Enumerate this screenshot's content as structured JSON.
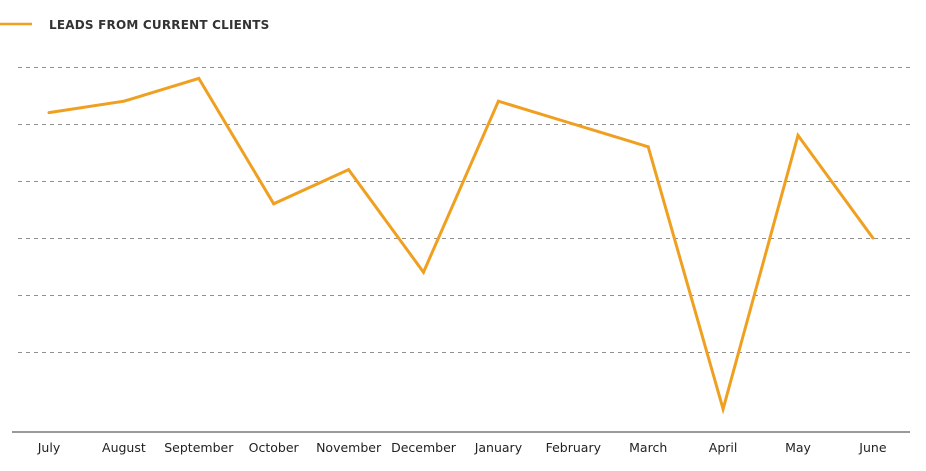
{
  "chart_data": {
    "type": "line",
    "title": "",
    "xlabel": "",
    "ylabel": "",
    "categories": [
      "July",
      "August",
      "September",
      "October",
      "November",
      "December",
      "January",
      "February",
      "March",
      "April",
      "May",
      "June"
    ],
    "series": [
      {
        "name": "LEADS FROM CURRENT CLIENTS",
        "color": "#f0a020",
        "values": [
          5.2,
          5.4,
          5.8,
          3.6,
          4.2,
          2.4,
          5.4,
          5.0,
          4.6,
          0.0,
          4.8,
          3.0
        ]
      }
    ],
    "ylim": [
      0,
      6
    ],
    "grid": true,
    "legend": "top-left",
    "y_tick_labels_shown": false
  }
}
